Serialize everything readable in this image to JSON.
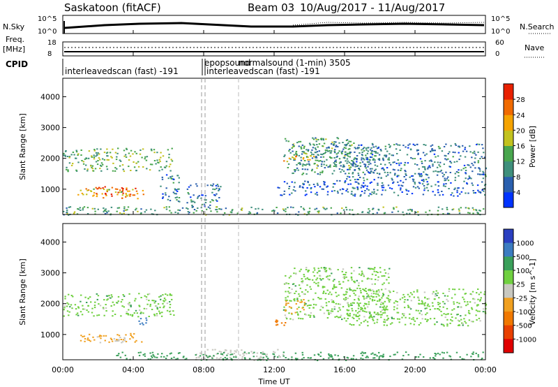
{
  "header": {
    "station": "Saskatoon (fitACF)",
    "beam": "Beam 03",
    "dates": "10/Aug/2017 - 11/Aug/2017"
  },
  "nsky_panel": {
    "left_label": "N.Sky",
    "right_label": "N.Search",
    "left_ticks": [
      "10^5",
      "10^0"
    ],
    "right_ticks": [
      "10^5",
      "10^0"
    ]
  },
  "freq_panel": {
    "left_label_top": "Freq.",
    "left_label_bottom": "[MHz]",
    "right_label": "Nave",
    "left_ticks": [
      "18",
      "8"
    ],
    "right_ticks": [
      "60",
      "0"
    ]
  },
  "cpid": {
    "label": "CPID",
    "segments": [
      "interleavedscan (fast) -191",
      "epopsound",
      "normalsound (1-min) 3505",
      "interleavedscan (fast) -191"
    ]
  },
  "x_axis": {
    "label": "Time UT",
    "ticks": [
      "00:00",
      "04:00",
      "08:00",
      "12:00",
      "16:00",
      "20:00",
      "00:00"
    ],
    "range_hours": [
      0,
      24
    ]
  },
  "colors": {
    "power": [
      "#0033ff",
      "#2a5fae",
      "#3f8f7c",
      "#49a64e",
      "#c2c21e",
      "#f5a300",
      "#f06a00",
      "#e82000"
    ],
    "velocity": [
      "#2a3fc0",
      "#3c7cc0",
      "#3aa05a",
      "#70d040",
      "#c8c8c0",
      "#f0a020",
      "#f07800",
      "#e84000",
      "#e00000"
    ]
  },
  "chart_data": [
    {
      "type": "heatmap",
      "name": "power",
      "title": "",
      "xlabel": "Time UT",
      "ylabel": "Slant Range [km]",
      "xlim_hours": [
        0,
        24
      ],
      "ylim_km": [
        180,
        4600
      ],
      "yticks": [
        1000,
        2000,
        3000,
        4000
      ],
      "colorbar": {
        "label": "Power [dB]",
        "ticks": [
          "4",
          "8",
          "12",
          "16",
          "20",
          "24",
          "28"
        ],
        "range": [
          0,
          32
        ]
      },
      "regions": [
        {
          "t0": 0.0,
          "t1": 6.3,
          "r0": 1600,
          "r1": 2350,
          "v": 14
        },
        {
          "t0": 1.8,
          "t1": 4.4,
          "r0": 700,
          "r1": 1100,
          "v": 26
        },
        {
          "t0": 0.8,
          "t1": 4.6,
          "r0": 800,
          "r1": 1050,
          "v": 20
        },
        {
          "t0": 5.4,
          "t1": 6.6,
          "r0": 600,
          "r1": 1500,
          "v": 8
        },
        {
          "t0": 7.0,
          "t1": 9.0,
          "r0": 400,
          "r1": 1200,
          "v": 8
        },
        {
          "t0": 0.0,
          "t1": 24.0,
          "r0": 180,
          "r1": 450,
          "v": 12
        },
        {
          "t0": 12.5,
          "t1": 16.5,
          "r0": 1700,
          "r1": 2700,
          "v": 12
        },
        {
          "t0": 13.0,
          "t1": 18.5,
          "r0": 1500,
          "r1": 2500,
          "v": 10
        },
        {
          "t0": 16.0,
          "t1": 24.0,
          "r0": 1300,
          "r1": 2500,
          "v": 8
        },
        {
          "t0": 12.0,
          "t1": 24.0,
          "r0": 800,
          "r1": 1300,
          "v": 6
        },
        {
          "t0": 12.5,
          "t1": 14.5,
          "r0": 1900,
          "r1": 2100,
          "v": 22
        }
      ]
    },
    {
      "type": "heatmap",
      "name": "velocity",
      "title": "",
      "xlabel": "Time UT",
      "ylabel": "Slant Range [km]",
      "xlim_hours": [
        0,
        24
      ],
      "ylim_km": [
        180,
        4600
      ],
      "yticks": [
        1000,
        2000,
        3000,
        4000
      ],
      "colorbar": {
        "label": "Velocity [m s^-1]",
        "ticks": [
          "1000",
          "500",
          "100",
          "25",
          "-25",
          "-100",
          "-500",
          "-1000"
        ],
        "range": [
          -1200,
          1200
        ]
      },
      "regions": [
        {
          "t0": 0.0,
          "t1": 6.3,
          "r0": 1600,
          "r1": 2350,
          "v": 0
        },
        {
          "t0": 0.8,
          "t1": 4.6,
          "r0": 750,
          "r1": 1050,
          "v": -150
        },
        {
          "t0": 1.8,
          "t1": 3.6,
          "r0": 750,
          "r1": 950,
          "v": -60
        },
        {
          "t0": 4.2,
          "t1": 4.8,
          "r0": 1300,
          "r1": 1600,
          "v": 300
        },
        {
          "t0": 7.5,
          "t1": 12.5,
          "r0": 180,
          "r1": 550,
          "v": -60
        },
        {
          "t0": 3.0,
          "t1": 24.0,
          "r0": 180,
          "r1": 450,
          "v": 60
        },
        {
          "t0": 12.5,
          "t1": 18.5,
          "r0": 1500,
          "r1": 3200,
          "v": 0
        },
        {
          "t0": 16.0,
          "t1": 24.0,
          "r0": 1300,
          "r1": 2500,
          "v": 0
        },
        {
          "t0": 12.5,
          "t1": 13.7,
          "r0": 1700,
          "r1": 2200,
          "v": -300
        },
        {
          "t0": 11.8,
          "t1": 12.6,
          "r0": 1200,
          "r1": 1500,
          "v": -600
        }
      ]
    }
  ]
}
